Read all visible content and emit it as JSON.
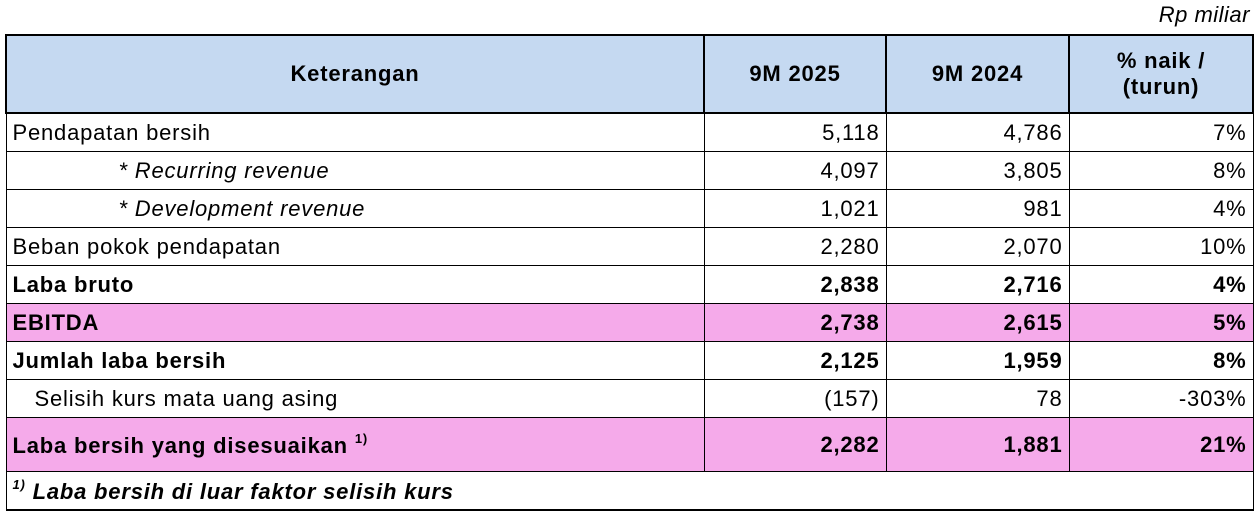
{
  "unit": "Rp miliar",
  "table": {
    "header": [
      "Keterangan",
      "9M 2025",
      "9M 2024",
      [
        "% naik /",
        "(turun)"
      ]
    ],
    "rows": [
      [
        "Pendapatan bersih",
        "5,118",
        "4,786",
        "7%"
      ],
      [
        "* Recurring revenue",
        "4,097",
        "3,805",
        "8%"
      ],
      [
        "* Development revenue",
        "1,021",
        "981",
        "4%"
      ],
      [
        "Beban pokok pendapatan",
        "2,280",
        "2,070",
        "10%"
      ],
      [
        "Laba bruto",
        "2,838",
        "2,716",
        "4%"
      ],
      [
        "EBITDA",
        "2,738",
        "2,615",
        "5%"
      ],
      [
        "Jumlah laba bersih",
        "2,125",
        "1,959",
        "8%"
      ],
      [
        "Selisih kurs mata uang asing",
        "(157)",
        "78",
        "-303%"
      ],
      [
        {
          "text": "Laba bersih yang disesuaikan",
          "note": "1)"
        },
        "2,282",
        "1,881",
        "21%"
      ]
    ],
    "footnote": {
      "mark": "1)",
      "text": "Laba bersih di luar faktor selisih kurs"
    }
  }
}
